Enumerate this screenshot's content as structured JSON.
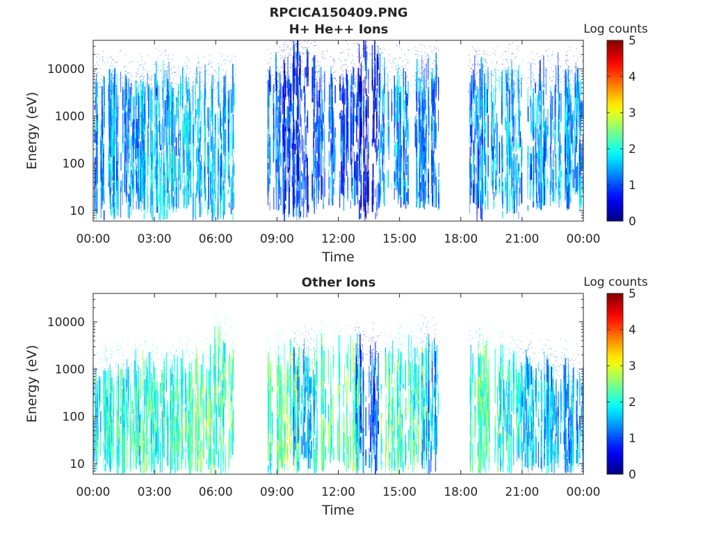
{
  "figure_title": "RPCICA150409.PNG",
  "chart_data": [
    {
      "type": "heatmap",
      "title": "H+ He++ Ions",
      "xlabel": "Time",
      "ylabel": "Energy (eV)",
      "x_ticks": [
        "00:00",
        "03:00",
        "06:00",
        "09:00",
        "12:00",
        "15:00",
        "18:00",
        "21:00",
        "00:00"
      ],
      "xlim_hours": [
        0,
        24
      ],
      "y_scale": "log",
      "y_ticks": [
        "10",
        "100",
        "1000",
        "10000"
      ],
      "ylim": [
        6,
        40000
      ],
      "colorbar": {
        "label": "Log counts",
        "min": 0,
        "max": 5,
        "ticks": [
          "0",
          "1",
          "2",
          "3",
          "4",
          "5"
        ],
        "colormap": "jet"
      },
      "data_gaps_hours": [
        [
          6.9,
          8.5
        ],
        [
          16.9,
          18.4
        ]
      ],
      "bursts": [
        {
          "t": 0.5,
          "emin": 6,
          "emax": 4000,
          "level": 1.3
        },
        {
          "t": 1.3,
          "emin": 6,
          "emax": 5000,
          "level": 1.4
        },
        {
          "t": 2.0,
          "emin": 10,
          "emax": 3000,
          "level": 1.3
        },
        {
          "t": 2.8,
          "emin": 6,
          "emax": 4000,
          "level": 1.5
        },
        {
          "t": 3.6,
          "emin": 6,
          "emax": 5000,
          "level": 1.4
        },
        {
          "t": 4.2,
          "emin": 10,
          "emax": 4000,
          "level": 1.6
        },
        {
          "t": 5.4,
          "emin": 6,
          "emax": 5000,
          "level": 1.5
        },
        {
          "t": 6.4,
          "emin": 6,
          "emax": 4000,
          "level": 1.5
        },
        {
          "t": 8.6,
          "emin": 10,
          "emax": 6000,
          "level": 1.2
        },
        {
          "t": 9.5,
          "emin": 6,
          "emax": 10000,
          "level": 0.8
        },
        {
          "t": 10.3,
          "emin": 6,
          "emax": 20000,
          "level": 0.7
        },
        {
          "t": 11.3,
          "emin": 10,
          "emax": 6000,
          "level": 1.0
        },
        {
          "t": 12.6,
          "emin": 10,
          "emax": 8000,
          "level": 1.0
        },
        {
          "t": 13.4,
          "emin": 6,
          "emax": 20000,
          "level": 0.6
        },
        {
          "t": 14.5,
          "emin": 10,
          "emax": 6000,
          "level": 1.2
        },
        {
          "t": 15.7,
          "emin": 10,
          "emax": 6000,
          "level": 1.2
        },
        {
          "t": 16.6,
          "emin": 10,
          "emax": 8000,
          "level": 1.1
        },
        {
          "t": 18.6,
          "emin": 6,
          "emax": 8000,
          "level": 1.1
        },
        {
          "t": 19.5,
          "emin": 10,
          "emax": 6000,
          "level": 1.4
        },
        {
          "t": 20.5,
          "emin": 6,
          "emax": 6000,
          "level": 1.4
        },
        {
          "t": 21.7,
          "emin": 10,
          "emax": 5000,
          "level": 1.3
        },
        {
          "t": 22.9,
          "emin": 10,
          "emax": 5000,
          "level": 1.3
        },
        {
          "t": 23.6,
          "emin": 10,
          "emax": 5000,
          "level": 1.2
        }
      ]
    },
    {
      "type": "heatmap",
      "title": "Other Ions",
      "xlabel": "Time",
      "ylabel": "Energy (eV)",
      "x_ticks": [
        "00:00",
        "03:00",
        "06:00",
        "09:00",
        "12:00",
        "15:00",
        "18:00",
        "21:00",
        "00:00"
      ],
      "xlim_hours": [
        0,
        24
      ],
      "y_scale": "log",
      "y_ticks": [
        "10",
        "100",
        "1000",
        "10000"
      ],
      "ylim": [
        6,
        40000
      ],
      "colorbar": {
        "label": "Log counts",
        "min": 0,
        "max": 5,
        "ticks": [
          "0",
          "1",
          "2",
          "3",
          "4",
          "5"
        ],
        "colormap": "jet"
      },
      "data_gaps_hours": [
        [
          6.9,
          8.5
        ],
        [
          16.9,
          18.4
        ]
      ],
      "bursts": [
        {
          "t": 0.3,
          "emin": 6,
          "emax": 700,
          "level": 1.9
        },
        {
          "t": 1.0,
          "emin": 6,
          "emax": 800,
          "level": 2.0
        },
        {
          "t": 1.8,
          "emin": 6,
          "emax": 700,
          "level": 1.9
        },
        {
          "t": 2.6,
          "emin": 6,
          "emax": 800,
          "level": 2.1
        },
        {
          "t": 3.4,
          "emin": 6,
          "emax": 800,
          "level": 2.0
        },
        {
          "t": 4.3,
          "emin": 6,
          "emax": 900,
          "level": 2.1
        },
        {
          "t": 5.3,
          "emin": 6,
          "emax": 1000,
          "level": 2.3
        },
        {
          "t": 6.4,
          "emin": 6,
          "emax": 3000,
          "level": 2.2
        },
        {
          "t": 8.7,
          "emin": 6,
          "emax": 1500,
          "level": 2.1
        },
        {
          "t": 9.6,
          "emin": 6,
          "emax": 1500,
          "level": 2.4
        },
        {
          "t": 10.3,
          "emin": 6,
          "emax": 1500,
          "level": 1.4
        },
        {
          "t": 11.2,
          "emin": 6,
          "emax": 2000,
          "level": 2.2
        },
        {
          "t": 12.5,
          "emin": 6,
          "emax": 2000,
          "level": 2.3
        },
        {
          "t": 13.4,
          "emin": 6,
          "emax": 2000,
          "level": 1.0
        },
        {
          "t": 14.6,
          "emin": 6,
          "emax": 1500,
          "level": 2.1
        },
        {
          "t": 15.8,
          "emin": 6,
          "emax": 2000,
          "level": 2.1
        },
        {
          "t": 16.6,
          "emin": 6,
          "emax": 3000,
          "level": 1.4
        },
        {
          "t": 18.6,
          "emin": 6,
          "emax": 1500,
          "level": 2.0
        },
        {
          "t": 19.4,
          "emin": 6,
          "emax": 1200,
          "level": 2.3
        },
        {
          "t": 20.4,
          "emin": 6,
          "emax": 1200,
          "level": 1.9
        },
        {
          "t": 21.5,
          "emin": 6,
          "emax": 1000,
          "level": 1.6
        },
        {
          "t": 22.6,
          "emin": 6,
          "emax": 800,
          "level": 1.5
        },
        {
          "t": 23.5,
          "emin": 6,
          "emax": 600,
          "level": 1.4
        }
      ]
    }
  ]
}
